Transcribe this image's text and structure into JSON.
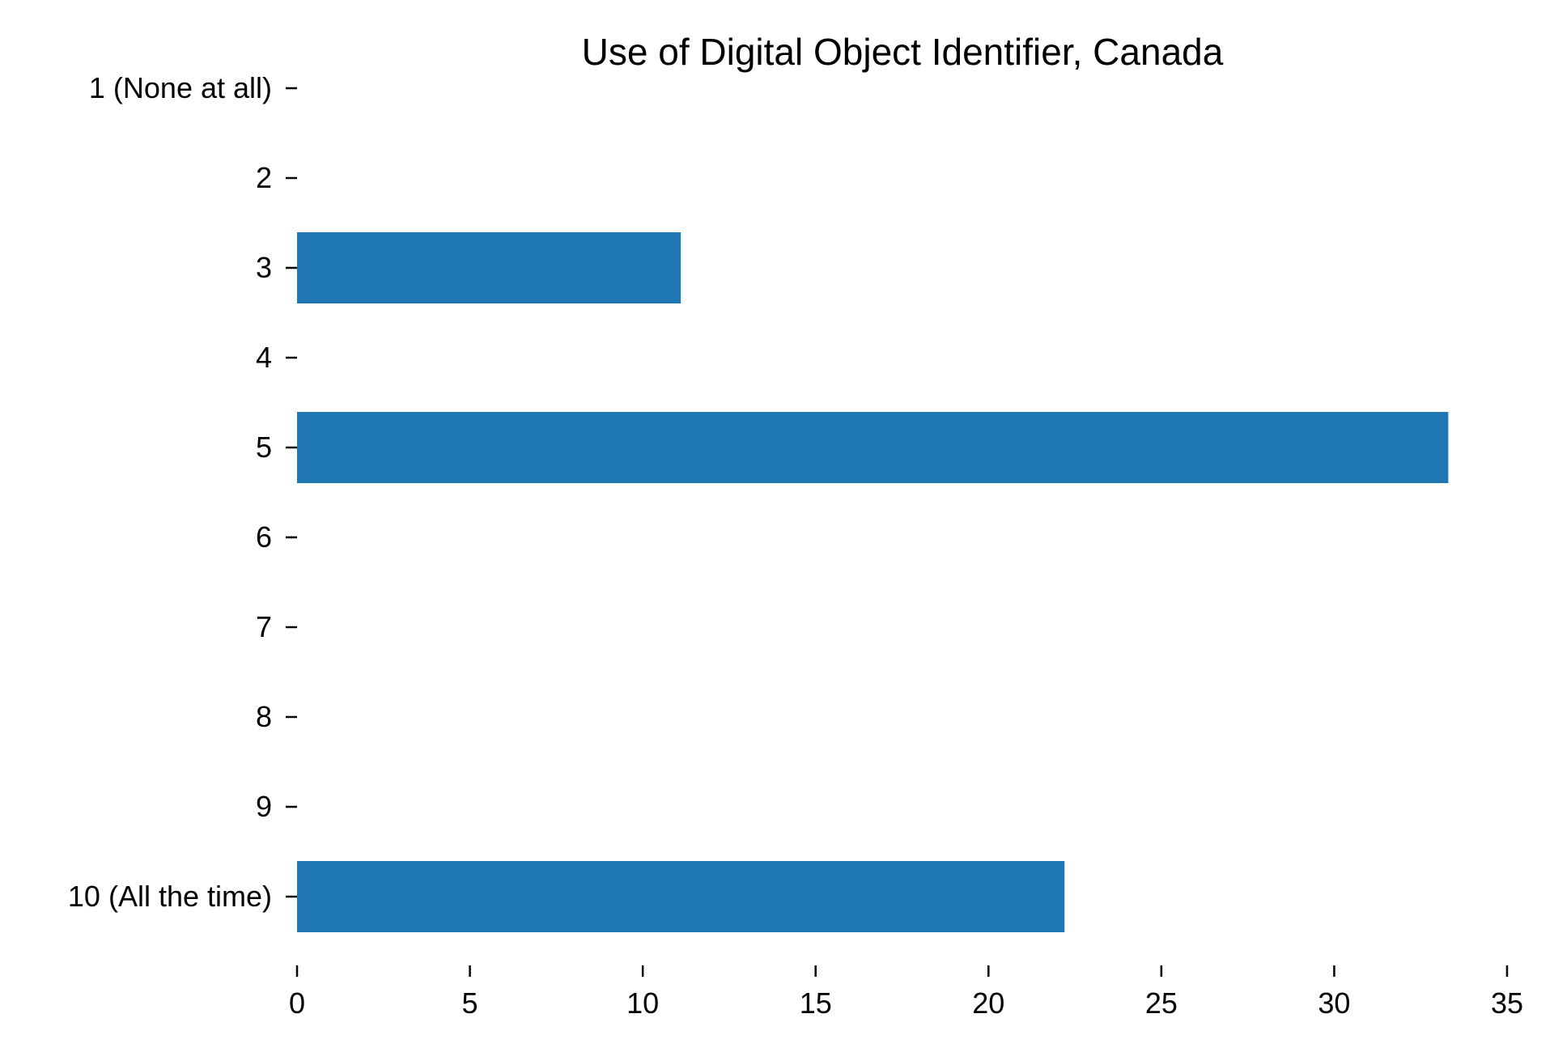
{
  "chart_data": {
    "type": "bar",
    "orientation": "horizontal",
    "title": "Use of Digital Object Identifier, Canada",
    "xlabel": "",
    "ylabel": "",
    "categories": [
      "1 (None at all)",
      "2",
      "3",
      "4",
      "5",
      "6",
      "7",
      "8",
      "9",
      "10 (All the time)"
    ],
    "values": [
      0,
      0,
      11.1,
      0,
      33.3,
      0,
      0,
      0,
      0,
      22.2
    ],
    "xlim": [
      0,
      35
    ],
    "xticks": [
      0,
      5,
      10,
      15,
      20,
      25,
      30,
      35
    ],
    "grid": false,
    "bar_color": "#1f77b4"
  }
}
